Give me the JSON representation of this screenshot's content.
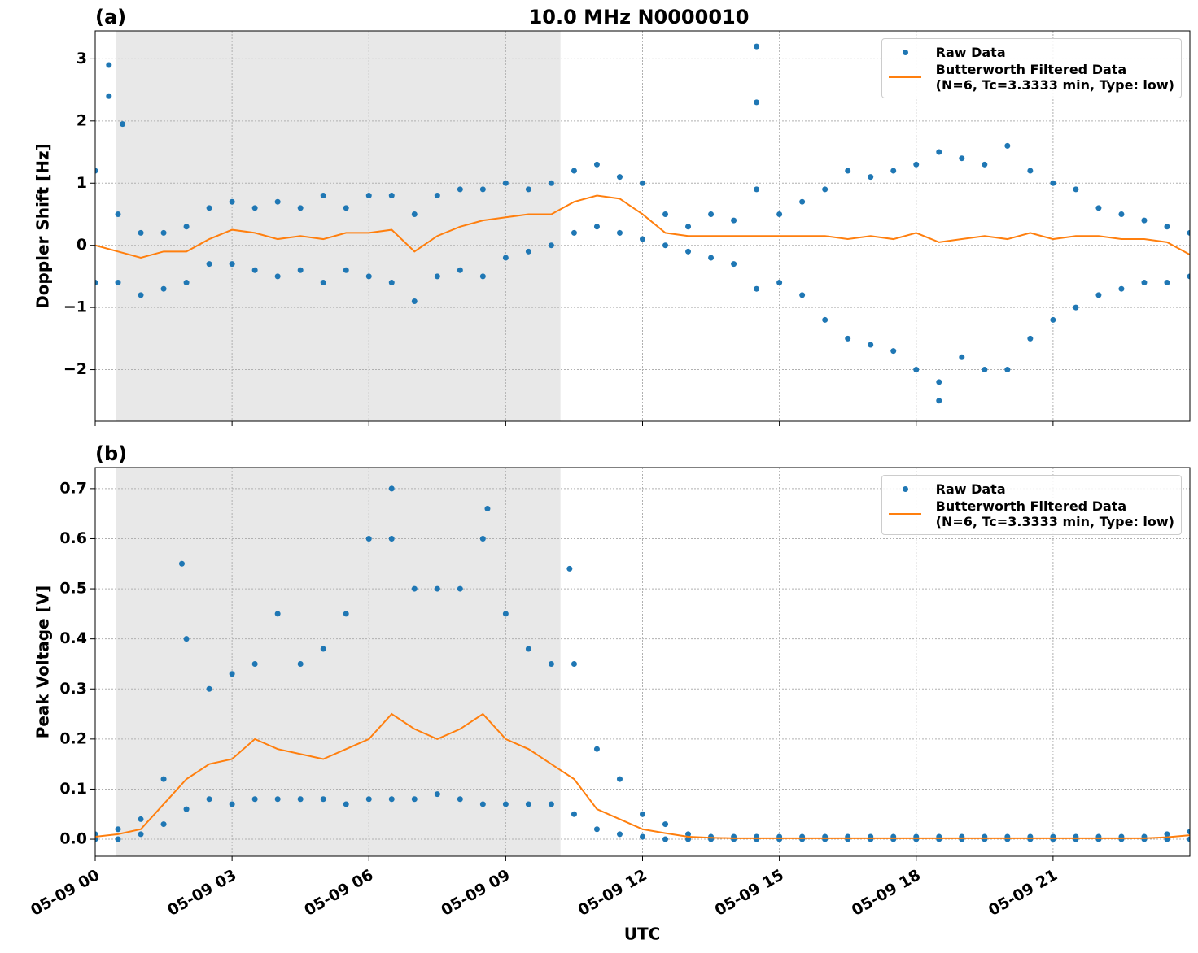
{
  "title": "10.0 MHz N0000010",
  "x_label": "UTC",
  "chart_data": [
    {
      "type": "scatter_line",
      "panel_label": "(a)",
      "y_label": "Doppler Shift [Hz]",
      "xlim": [
        0,
        24
      ],
      "ylim": [
        -2.83,
        3.45
      ],
      "grid": true,
      "shade": [
        0.45,
        10.2
      ],
      "legend": "upper right",
      "yticks": [
        {
          "value": -2,
          "label": "−2"
        },
        {
          "value": -1,
          "label": "−1"
        },
        0,
        1,
        2,
        3
      ],
      "series": [
        {
          "name": "Raw Data",
          "color": "#1f77b4",
          "style": "points",
          "x": [
            0,
            0.5,
            1,
            1.5,
            2,
            2.5,
            3,
            3.5,
            4,
            4.5,
            5,
            5.5,
            6,
            6.5,
            7,
            7.5,
            8,
            8.5,
            9,
            9.5,
            10,
            10.5,
            11,
            11.5,
            12,
            12.5,
            13,
            13.5,
            14,
            14.5,
            15,
            15.5,
            16,
            16.5,
            17,
            17.5,
            18,
            18.5,
            19,
            19.5,
            20,
            20.5,
            21,
            21.5,
            22,
            22.5,
            23,
            23.5,
            24,
            0,
            0.5,
            1,
            1.5,
            2,
            2.5,
            3,
            3.5,
            4,
            4.5,
            5,
            5.5,
            6,
            6.5,
            7,
            7.5,
            8,
            8.5,
            9,
            9.5,
            10,
            10.5,
            11,
            11.5,
            12,
            12.5,
            13,
            13.5,
            14,
            14.5,
            15,
            15.5,
            16,
            16.5,
            17,
            17.5,
            18,
            18.5,
            19,
            19.5,
            20,
            20.5,
            21,
            21.5,
            22,
            22.5,
            23,
            23.5,
            24,
            0.3,
            0.3,
            0.6,
            14.5,
            14.5,
            18.5
          ],
          "values": [
            1.2,
            0.5,
            0.2,
            0.2,
            0.3,
            0.6,
            0.7,
            0.6,
            0.7,
            0.6,
            0.8,
            0.6,
            0.8,
            0.8,
            0.5,
            0.8,
            0.9,
            0.9,
            1.0,
            0.9,
            1.0,
            1.2,
            1.3,
            1.1,
            1.0,
            0.5,
            0.3,
            0.5,
            0.4,
            0.9,
            0.5,
            0.7,
            0.9,
            1.2,
            1.1,
            1.2,
            1.3,
            1.5,
            1.4,
            1.3,
            1.6,
            1.2,
            1.0,
            0.9,
            0.6,
            0.5,
            0.4,
            0.3,
            0.2,
            -0.6,
            -0.6,
            -0.8,
            -0.7,
            -0.6,
            -0.3,
            -0.3,
            -0.4,
            -0.5,
            -0.4,
            -0.6,
            -0.4,
            -0.5,
            -0.6,
            -0.9,
            -0.5,
            -0.4,
            -0.5,
            -0.2,
            -0.1,
            0.0,
            0.2,
            0.3,
            0.2,
            0.1,
            0.0,
            -0.1,
            -0.2,
            -0.3,
            -0.7,
            -0.6,
            -0.8,
            -1.2,
            -1.5,
            -1.6,
            -1.7,
            -2.0,
            -2.2,
            -1.8,
            -2.0,
            -2.0,
            -1.5,
            -1.2,
            -1.0,
            -0.8,
            -0.7,
            -0.6,
            -0.6,
            -0.5,
            2.9,
            2.4,
            1.95,
            3.2,
            2.3,
            -2.5
          ]
        },
        {
          "name": "Butterworth Filtered Data\n(N=6, Tc=3.3333 min, Type: low)",
          "color": "#ff7f0e",
          "style": "line",
          "x": [
            0,
            0.5,
            1,
            1.5,
            2,
            2.5,
            3,
            3.5,
            4,
            4.5,
            5,
            5.5,
            6,
            6.5,
            7,
            7.5,
            8,
            8.5,
            9,
            9.5,
            10,
            10.5,
            11,
            11.5,
            12,
            12.5,
            13,
            13.5,
            14,
            14.5,
            15,
            15.5,
            16,
            16.5,
            17,
            17.5,
            18,
            18.5,
            19,
            19.5,
            20,
            20.5,
            21,
            21.5,
            22,
            22.5,
            23,
            23.5,
            24
          ],
          "values": [
            0,
            -0.1,
            -0.2,
            -0.1,
            -0.1,
            0.1,
            0.25,
            0.2,
            0.1,
            0.15,
            0.1,
            0.2,
            0.2,
            0.25,
            -0.1,
            0.15,
            0.3,
            0.4,
            0.45,
            0.5,
            0.5,
            0.7,
            0.8,
            0.75,
            0.5,
            0.2,
            0.15,
            0.15,
            0.15,
            0.15,
            0.15,
            0.15,
            0.15,
            0.1,
            0.15,
            0.1,
            0.2,
            0.05,
            0.1,
            0.15,
            0.1,
            0.2,
            0.1,
            0.15,
            0.15,
            0.1,
            0.1,
            0.05,
            -0.15
          ]
        }
      ]
    },
    {
      "type": "scatter_line",
      "panel_label": "(b)",
      "y_label": "Peak Voltage [V]",
      "xlim": [
        0,
        24
      ],
      "ylim": [
        -0.034,
        0.742
      ],
      "grid": true,
      "shade": [
        0.45,
        10.2
      ],
      "legend": "upper right",
      "yticks": [
        {
          "value": 0,
          "label": "0.0"
        },
        0.1,
        0.2,
        0.3,
        0.4,
        0.5,
        0.6,
        0.7
      ],
      "xticks": [
        {
          "value": 0,
          "label": "05-09 00"
        },
        {
          "value": 3,
          "label": "05-09 03"
        },
        {
          "value": 6,
          "label": "05-09 06"
        },
        {
          "value": 9,
          "label": "05-09 09"
        },
        {
          "value": 12,
          "label": "05-09 12"
        },
        {
          "value": 15,
          "label": "05-09 15"
        },
        {
          "value": 18,
          "label": "05-09 18"
        },
        {
          "value": 21,
          "label": "05-09 21"
        }
      ],
      "series": [
        {
          "name": "Raw Data",
          "color": "#1f77b4",
          "style": "points",
          "x": [
            0,
            0.5,
            1,
            1.5,
            2,
            2.5,
            3,
            3.5,
            4,
            4.5,
            5,
            5.5,
            6,
            6.5,
            7,
            7.5,
            8,
            8.5,
            9,
            9.5,
            10,
            10.5,
            11,
            11.5,
            12,
            12.5,
            13,
            13.5,
            14,
            14.5,
            15,
            15.5,
            16,
            16.5,
            17,
            17.5,
            18,
            18.5,
            19,
            19.5,
            20,
            20.5,
            21,
            21.5,
            22,
            22.5,
            23,
            23.5,
            24,
            0,
            0.5,
            1,
            1.5,
            2,
            2.5,
            3,
            3.5,
            4,
            4.5,
            5,
            5.5,
            6,
            6.5,
            7,
            7.5,
            8,
            8.5,
            9,
            9.5,
            10,
            10.5,
            11,
            11.5,
            12,
            12.5,
            13,
            13.5,
            14,
            14.5,
            15,
            15.5,
            16,
            16.5,
            17,
            17.5,
            18,
            18.5,
            19,
            19.5,
            20,
            20.5,
            21,
            21.5,
            22,
            22.5,
            23,
            23.5,
            24,
            6.5,
            8.6,
            1.9,
            10.4
          ],
          "values": [
            0.01,
            0.02,
            0.04,
            0.12,
            0.4,
            0.3,
            0.33,
            0.35,
            0.45,
            0.35,
            0.38,
            0.45,
            0.6,
            0.6,
            0.5,
            0.5,
            0.5,
            0.6,
            0.45,
            0.38,
            0.35,
            0.35,
            0.18,
            0.12,
            0.05,
            0.03,
            0.01,
            0.005,
            0.005,
            0.005,
            0.005,
            0.005,
            0.005,
            0.005,
            0.005,
            0.005,
            0.005,
            0.005,
            0.005,
            0.005,
            0.005,
            0.005,
            0.005,
            0.005,
            0.005,
            0.005,
            0.005,
            0.01,
            0.015,
            0.0,
            0.0,
            0.01,
            0.03,
            0.06,
            0.08,
            0.07,
            0.08,
            0.08,
            0.08,
            0.08,
            0.07,
            0.08,
            0.08,
            0.08,
            0.09,
            0.08,
            0.07,
            0.07,
            0.07,
            0.07,
            0.05,
            0.02,
            0.01,
            0.005,
            0,
            0,
            0,
            0,
            0,
            0,
            0,
            0,
            0,
            0,
            0,
            0,
            0,
            0,
            0,
            0,
            0,
            0,
            0,
            0,
            0,
            0,
            0,
            0,
            0.7,
            0.66,
            0.55,
            0.54
          ]
        },
        {
          "name": "Butterworth Filtered Data\n(N=6, Tc=3.3333 min, Type: low)",
          "color": "#ff7f0e",
          "style": "line",
          "x": [
            0,
            0.5,
            1,
            1.5,
            2,
            2.5,
            3,
            3.5,
            4,
            4.5,
            5,
            5.5,
            6,
            6.5,
            7,
            7.5,
            8,
            8.5,
            9,
            9.5,
            10,
            10.5,
            11,
            11.5,
            12,
            12.5,
            13,
            13.5,
            14,
            14.5,
            15,
            15.5,
            16,
            16.5,
            17,
            17.5,
            18,
            18.5,
            19,
            19.5,
            20,
            20.5,
            21,
            21.5,
            22,
            22.5,
            23,
            23.5,
            24
          ],
          "values": [
            0.005,
            0.01,
            0.02,
            0.07,
            0.12,
            0.15,
            0.16,
            0.2,
            0.18,
            0.17,
            0.16,
            0.18,
            0.2,
            0.25,
            0.22,
            0.2,
            0.22,
            0.25,
            0.2,
            0.18,
            0.15,
            0.12,
            0.06,
            0.04,
            0.02,
            0.012,
            0.005,
            0.003,
            0.002,
            0.002,
            0.002,
            0.002,
            0.002,
            0.002,
            0.002,
            0.002,
            0.002,
            0.002,
            0.002,
            0.002,
            0.002,
            0.002,
            0.002,
            0.002,
            0.002,
            0.002,
            0.002,
            0.004,
            0.008
          ]
        }
      ]
    }
  ]
}
